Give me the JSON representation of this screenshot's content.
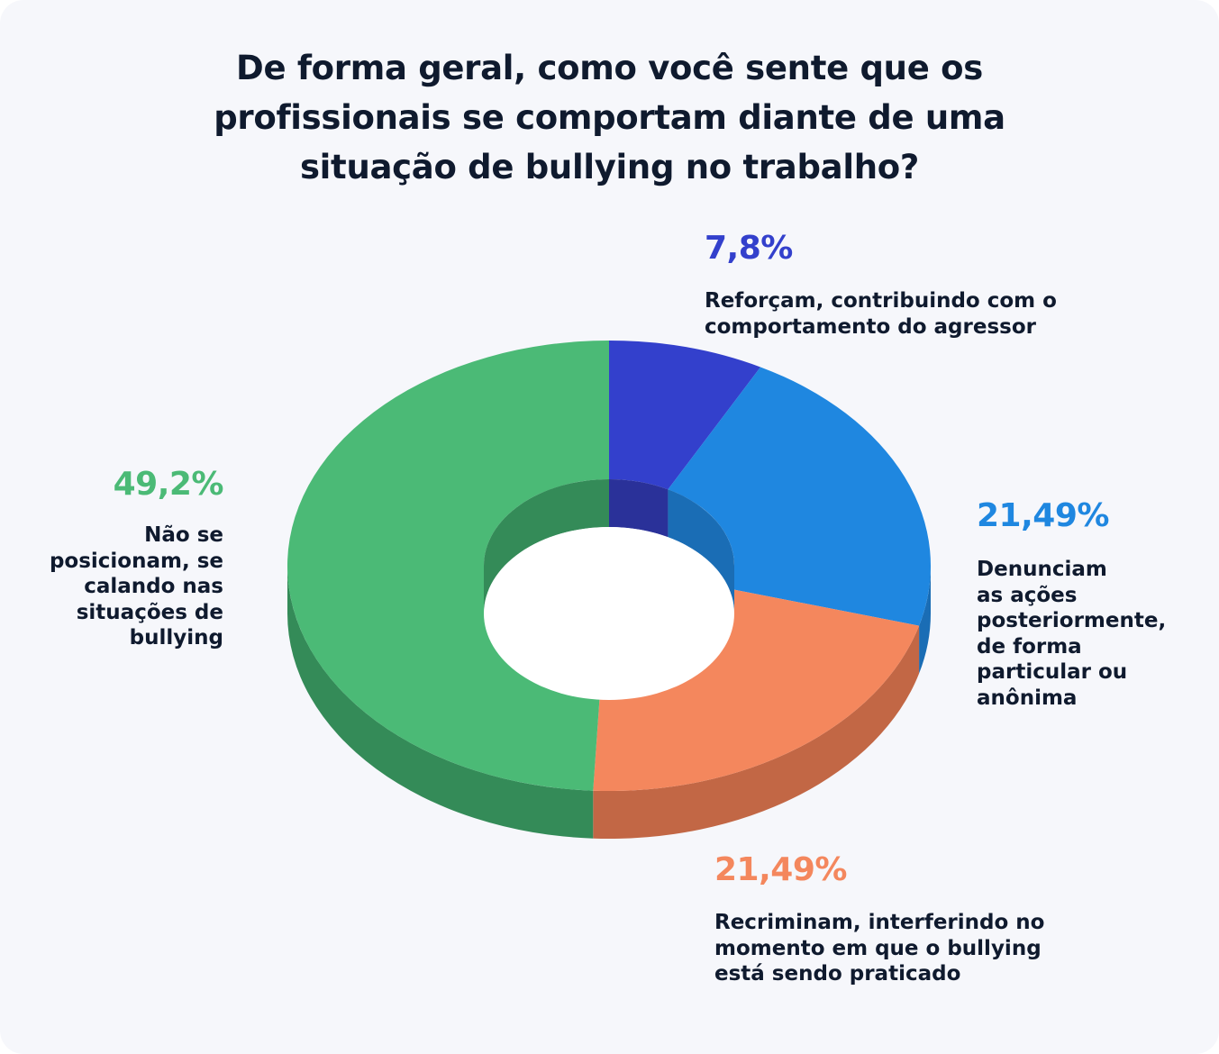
{
  "title_lines": [
    "De forma geral, como você sente que os",
    "profissionais se comportam diante de uma",
    "situação de bullying no trabalho?"
  ],
  "chart_data": {
    "type": "pie",
    "title": "De forma geral, como você sente que os profissionais se comportam diante de uma situação de bullying no trabalho?",
    "donut": true,
    "style": "3d",
    "slices": [
      {
        "value": 7.8,
        "value_label": "7,8%",
        "label_lines": [
          "Reforçam, contribuindo com o",
          "comportamento do agressor"
        ],
        "color": "#3340cc",
        "side_color": "#2a3199"
      },
      {
        "value": 21.49,
        "value_label": "21,49%",
        "label_lines": [
          "Denunciam",
          "as ações",
          "posteriormente,",
          "de forma",
          "particular ou",
          "anônima"
        ],
        "color": "#1f87e0",
        "side_color": "#1a6db5"
      },
      {
        "value": 21.49,
        "value_label": "21,49%",
        "label_lines": [
          "Recriminam, interferindo no",
          "momento em que o bullying",
          "está sendo praticado"
        ],
        "color": "#f4875d",
        "side_color": "#c26745"
      },
      {
        "value": 49.2,
        "value_label": "49,2%",
        "label_lines": [
          "Não se",
          "posicionam, se",
          "calando nas",
          "situações de",
          "bullying"
        ],
        "color": "#4bba76",
        "side_color": "#348b58"
      }
    ]
  }
}
